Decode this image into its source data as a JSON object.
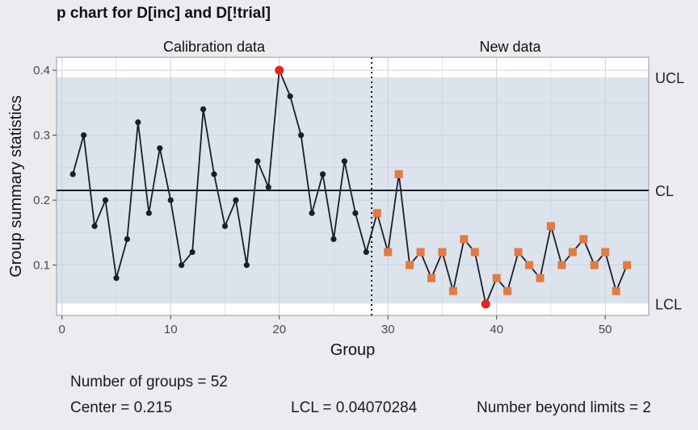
{
  "title": "p chart for D[inc] and D[!trial]",
  "stats": {
    "n_groups": "Number of groups = 52",
    "center": "Center = 0.215",
    "lcl": "LCL = 0.04070284",
    "beyond": "Number beyond limits = 2"
  },
  "chart_data": {
    "type": "line",
    "title": "p chart for D[inc] and D[!trial]",
    "xlabel": "Group",
    "ylabel": "Group summary statistics",
    "xlim": [
      -0.5,
      54
    ],
    "ylim": [
      0.0225,
      0.42
    ],
    "x_ticks": [
      0,
      10,
      20,
      30,
      40,
      50
    ],
    "y_ticks": [
      0.1,
      0.2,
      0.3,
      0.4
    ],
    "grid": true,
    "section_labels": [
      "Calibration data",
      "New data"
    ],
    "divider_x": 28.5,
    "limits": {
      "UCL": 0.389,
      "CL": 0.215,
      "LCL": 0.0407
    },
    "limit_labels": [
      "UCL",
      "CL",
      "LCL"
    ],
    "x": [
      1,
      2,
      3,
      4,
      5,
      6,
      7,
      8,
      9,
      10,
      11,
      12,
      13,
      14,
      15,
      16,
      17,
      18,
      19,
      20,
      21,
      22,
      23,
      24,
      25,
      26,
      27,
      28,
      29,
      30,
      31,
      32,
      33,
      34,
      35,
      36,
      37,
      38,
      39,
      40,
      41,
      42,
      43,
      44,
      45,
      46,
      47,
      48,
      49,
      50,
      51,
      52
    ],
    "values": [
      0.24,
      0.3,
      0.16,
      0.2,
      0.08,
      0.14,
      0.32,
      0.18,
      0.28,
      0.2,
      0.1,
      0.12,
      0.34,
      0.24,
      0.16,
      0.2,
      0.1,
      0.26,
      0.22,
      0.4,
      0.36,
      0.3,
      0.18,
      0.24,
      0.14,
      0.26,
      0.18,
      0.12,
      0.18,
      0.12,
      0.24,
      0.1,
      0.12,
      0.08,
      0.12,
      0.06,
      0.14,
      0.12,
      0.04,
      0.08,
      0.06,
      0.12,
      0.1,
      0.08,
      0.16,
      0.1,
      0.12,
      0.14,
      0.1,
      0.12,
      0.06,
      0.1
    ],
    "beyond_limits": [
      20,
      39
    ],
    "colors": {
      "panel": "#ffffff",
      "band": "#dde3ec",
      "grid": "#c9ced6",
      "line": "#1a1e28",
      "point": "#1a1e28",
      "beyond": "#e5241a",
      "new_point": "#e07b45",
      "page": "#ebecf0"
    }
  }
}
